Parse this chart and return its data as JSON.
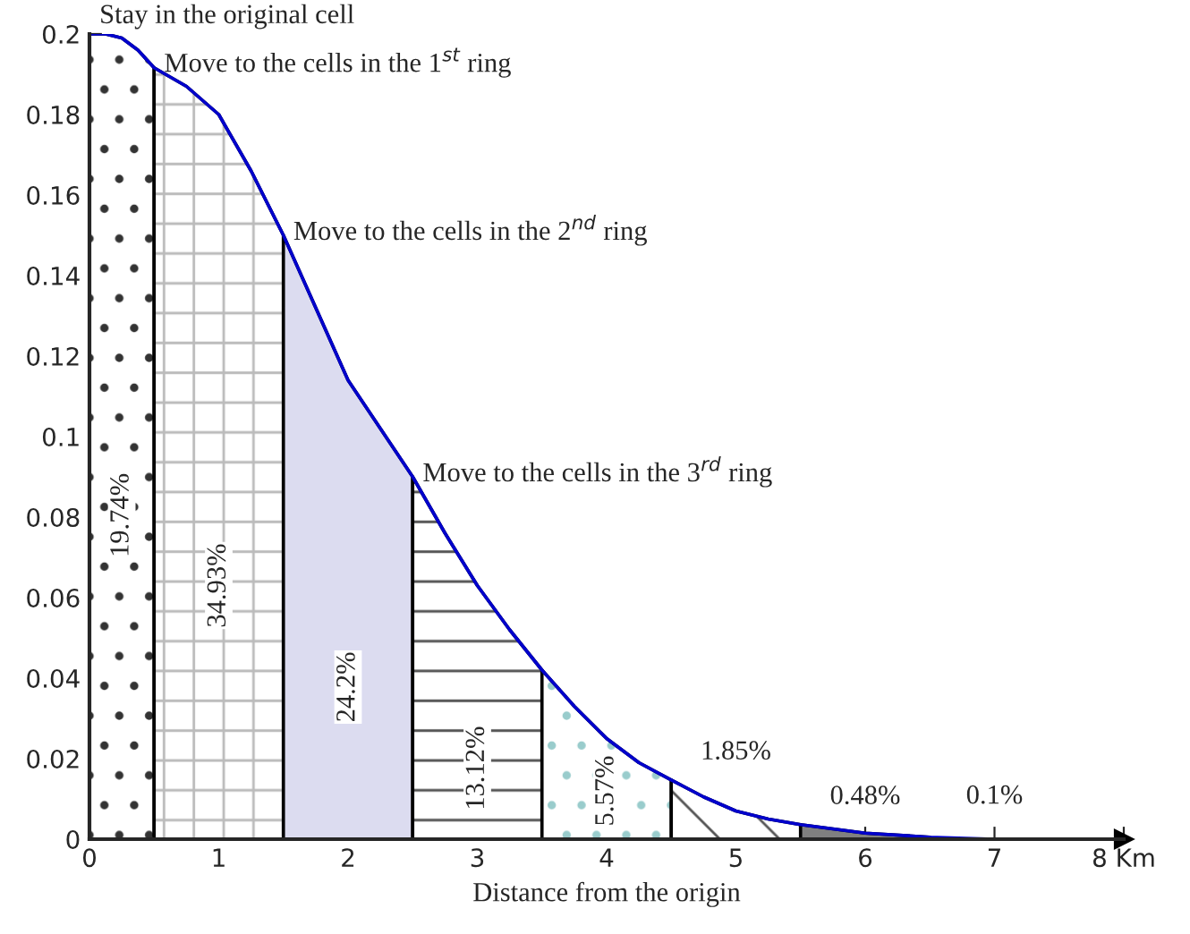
{
  "chart_data": {
    "type": "area",
    "xlabel": "Distance from the origin",
    "xlim": [
      0,
      8
    ],
    "ylim": [
      0,
      0.2
    ],
    "xticks": [
      0,
      1,
      2,
      3,
      4,
      5,
      6,
      7,
      {
        "value": 8,
        "label": "8 Km"
      }
    ],
    "yticks": [
      0,
      0.02,
      0.04,
      0.06,
      0.08,
      0.1,
      0.12,
      0.14,
      0.16,
      0.18,
      0.2
    ],
    "grid": false,
    "legend": false,
    "series": [
      {
        "color": "#ffffff",
        "x": [
          0,
          0.125,
          0.25,
          0.375,
          0.5
        ],
        "values": [
          0.2,
          0.2,
          0.199,
          0.196,
          0.1916
        ]
      },
      {
        "color": "#ffffff",
        "x": [
          0.5,
          0.75,
          1,
          1.25,
          1.5
        ],
        "values": [
          0.1916,
          0.187,
          0.18,
          0.166,
          0.15
        ]
      },
      {
        "color": "#dcdcf0",
        "x": [
          1.5,
          1.75,
          2,
          2.25,
          2.5
        ],
        "values": [
          0.15,
          0.132,
          0.114,
          0.102,
          0.09
        ]
      },
      {
        "color": "#ffffff",
        "x": [
          2.5,
          2.75,
          3,
          3.25,
          3.5
        ],
        "values": [
          0.09,
          0.076,
          0.063,
          0.052,
          0.042
        ]
      },
      {
        "color": "#ffffff",
        "x": [
          3.5,
          3.75,
          4,
          4.25,
          4.5
        ],
        "values": [
          0.042,
          0.033,
          0.025,
          0.019,
          0.0147
        ]
      },
      {
        "color": "#ffffff",
        "x": [
          4.5,
          4.75,
          5,
          5.25,
          5.5
        ],
        "values": [
          0.0147,
          0.0105,
          0.007,
          0.005,
          0.0036
        ]
      },
      {
        "color": "#808080",
        "x": [
          5.5,
          6,
          6.5
        ],
        "values": [
          0.0036,
          0.0015,
          0.0005
        ]
      },
      {
        "type": "line",
        "color": "#0000cc",
        "x": [
          0,
          0.125,
          0.25,
          0.375,
          0.5,
          0.75,
          1,
          1.25,
          1.5,
          1.75,
          2,
          2.25,
          2.5,
          2.75,
          3,
          3.25,
          3.5,
          3.75,
          4,
          4.25,
          4.5,
          4.75,
          5,
          5.25,
          5.5,
          6,
          6.5,
          7,
          8
        ],
        "values": [
          0.2,
          0.2,
          0.199,
          0.196,
          0.1916,
          0.187,
          0.18,
          0.166,
          0.15,
          0.132,
          0.114,
          0.102,
          0.09,
          0.076,
          0.063,
          0.052,
          0.042,
          0.033,
          0.025,
          0.019,
          0.0147,
          0.0105,
          0.007,
          0.005,
          0.0036,
          0.0015,
          0.0005,
          0,
          0
        ]
      }
    ],
    "annotations": [
      {
        "text": "Stay in the original cell",
        "x": 0,
        "y": 0.2
      },
      {
        "text": "Move to the cells in the 1$^{st}$ ring",
        "x": 0.5,
        "y": 0.1916
      },
      {
        "text": "Move to the cells in the 2$^{nd}$ ring",
        "x": 1.5,
        "y": 0.15
      },
      {
        "text": "Move to the cells in the 3$^{rd}$ ring",
        "x": 2.5,
        "y": 0.09
      },
      "19.74%",
      "34.93%",
      "24.2%",
      "13.12%",
      "5.57%",
      "1.85%",
      "0.48%",
      {
        "text": "0.1%",
        "x": 7,
        "y": 0
      }
    ]
  }
}
